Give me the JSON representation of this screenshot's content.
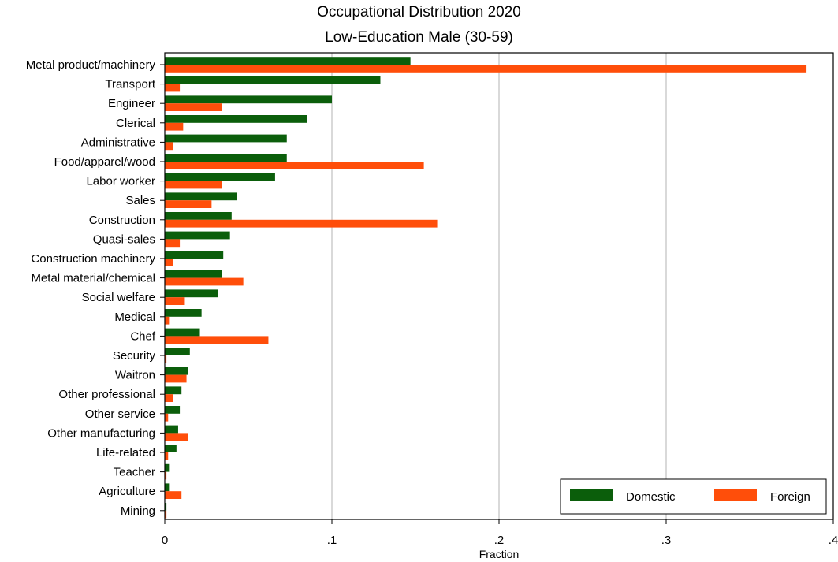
{
  "chart_data": {
    "type": "bar",
    "orientation": "horizontal",
    "title": "Occupational Distribution 2020",
    "subtitle": "Low-Education Male (30-59)",
    "xlabel": "Fraction",
    "ylabel": "",
    "xlim": [
      0,
      0.4
    ],
    "xticks": [
      0,
      0.1,
      0.2,
      0.3,
      0.4
    ],
    "xtick_labels": [
      "0",
      ".1",
      ".2",
      ".3",
      ".4"
    ],
    "grid": true,
    "legend_position": "bottom-right",
    "colors": {
      "Domestic": "#0b5e0b",
      "Foreign": "#ff4e0a"
    },
    "categories": [
      "Metal product/machinery",
      "Transport",
      "Engineer",
      "Clerical",
      "Administrative",
      "Food/apparel/wood",
      "Labor worker",
      "Sales",
      "Construction",
      "Quasi-sales",
      "Construction machinery",
      "Metal material/chemical",
      "Social welfare",
      "Medical",
      "Chef",
      "Security",
      "Waitron",
      "Other professional",
      "Other service",
      "Other manufacturing",
      "Life-related",
      "Teacher",
      "Agriculture",
      "Mining"
    ],
    "series": [
      {
        "name": "Domestic",
        "values": [
          0.147,
          0.129,
          0.1,
          0.085,
          0.073,
          0.073,
          0.066,
          0.043,
          0.04,
          0.039,
          0.035,
          0.034,
          0.032,
          0.022,
          0.021,
          0.015,
          0.014,
          0.01,
          0.009,
          0.008,
          0.007,
          0.003,
          0.003,
          0.001
        ]
      },
      {
        "name": "Foreign",
        "values": [
          0.384,
          0.009,
          0.034,
          0.011,
          0.005,
          0.155,
          0.034,
          0.028,
          0.163,
          0.009,
          0.005,
          0.047,
          0.012,
          0.003,
          0.062,
          0.001,
          0.013,
          0.005,
          0.002,
          0.014,
          0.002,
          0.001,
          0.01,
          0.001
        ]
      }
    ]
  }
}
